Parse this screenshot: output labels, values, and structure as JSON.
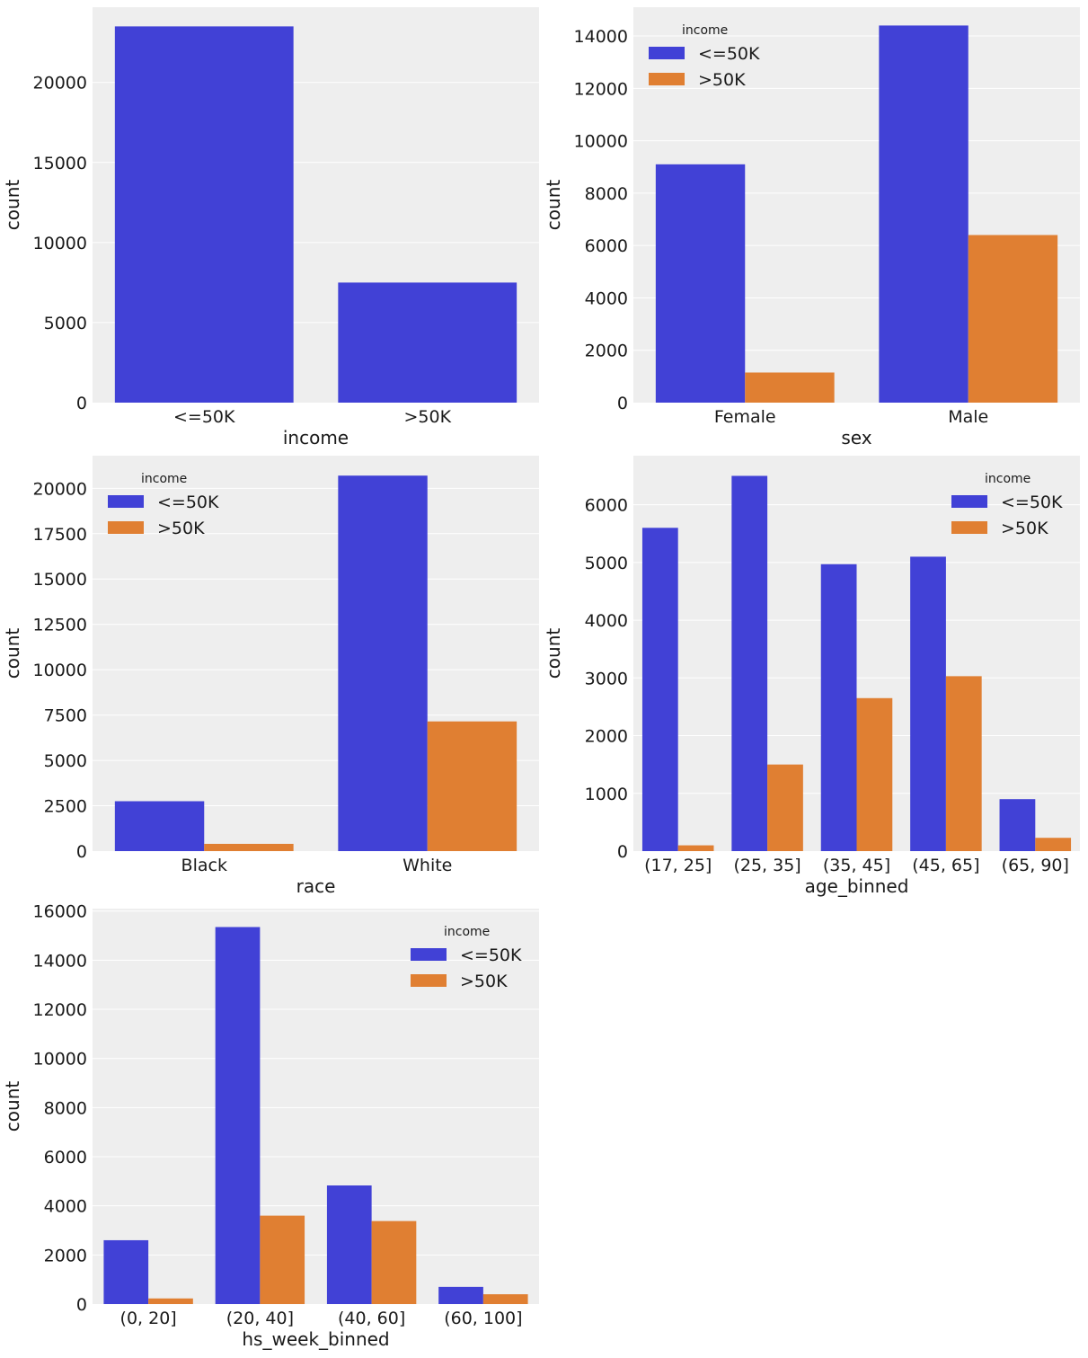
{
  "palette": {
    "le50k": "#4141d6",
    "gt50k": "#e07f32",
    "panel_bg": "#eeeeee",
    "grid": "#ffffff"
  },
  "chart_data": [
    {
      "type": "bar",
      "xlabel": "income",
      "ylabel": "count",
      "categories": [
        "<=50K",
        ">50K"
      ],
      "series": [
        {
          "name": "",
          "color": "#4141d6",
          "values": [
            23500,
            7500
          ]
        }
      ],
      "ylim": [
        0,
        24700
      ],
      "yticks": [
        0,
        5000,
        10000,
        15000,
        20000
      ],
      "legend": null
    },
    {
      "type": "bar",
      "xlabel": "sex",
      "ylabel": "count",
      "categories": [
        "Female",
        "Male"
      ],
      "series": [
        {
          "name": "<=50K",
          "color": "#4141d6",
          "values": [
            9100,
            14400
          ]
        },
        {
          "name": ">50K",
          "color": "#e07f32",
          "values": [
            1150,
            6400
          ]
        }
      ],
      "ylim": [
        0,
        15100
      ],
      "yticks": [
        0,
        2000,
        4000,
        6000,
        8000,
        10000,
        12000,
        14000
      ],
      "legend": {
        "title": "income",
        "position": "upper-left"
      }
    },
    {
      "type": "bar",
      "xlabel": "race",
      "ylabel": "count",
      "categories": [
        "Black",
        "White"
      ],
      "series": [
        {
          "name": "<=50K",
          "color": "#4141d6",
          "values": [
            2750,
            20700
          ]
        },
        {
          "name": ">50K",
          "color": "#e07f32",
          "values": [
            400,
            7150
          ]
        }
      ],
      "ylim": [
        0,
        21800
      ],
      "yticks": [
        0,
        2500,
        5000,
        7500,
        10000,
        12500,
        15000,
        17500,
        20000
      ],
      "legend": {
        "title": "income",
        "position": "upper-left"
      }
    },
    {
      "type": "bar",
      "xlabel": "age_binned",
      "ylabel": "count",
      "categories": [
        "(17, 25]",
        "(25, 35]",
        "(35, 45]",
        "(45, 65]",
        "(65, 90]"
      ],
      "series": [
        {
          "name": "<=50K",
          "color": "#4141d6",
          "values": [
            5600,
            6500,
            4970,
            5100,
            900
          ]
        },
        {
          "name": ">50K",
          "color": "#e07f32",
          "values": [
            100,
            1500,
            2650,
            3030,
            230
          ]
        }
      ],
      "ylim": [
        0,
        6850
      ],
      "yticks": [
        0,
        1000,
        2000,
        3000,
        4000,
        5000,
        6000
      ],
      "legend": {
        "title": "income",
        "position": "upper-right"
      }
    },
    {
      "type": "bar",
      "xlabel": "hs_week_binned",
      "ylabel": "count",
      "categories": [
        "(0, 20]",
        "(20, 40]",
        "(40, 60]",
        "(60, 100]"
      ],
      "series": [
        {
          "name": "<=50K",
          "color": "#4141d6",
          "values": [
            2600,
            15350,
            4830,
            700
          ]
        },
        {
          "name": ">50K",
          "color": "#e07f32",
          "values": [
            230,
            3600,
            3380,
            400
          ]
        }
      ],
      "ylim": [
        0,
        16100
      ],
      "yticks": [
        0,
        2000,
        4000,
        6000,
        8000,
        10000,
        12000,
        14000,
        16000
      ],
      "legend": {
        "title": "income",
        "position": "upper-right"
      }
    }
  ]
}
